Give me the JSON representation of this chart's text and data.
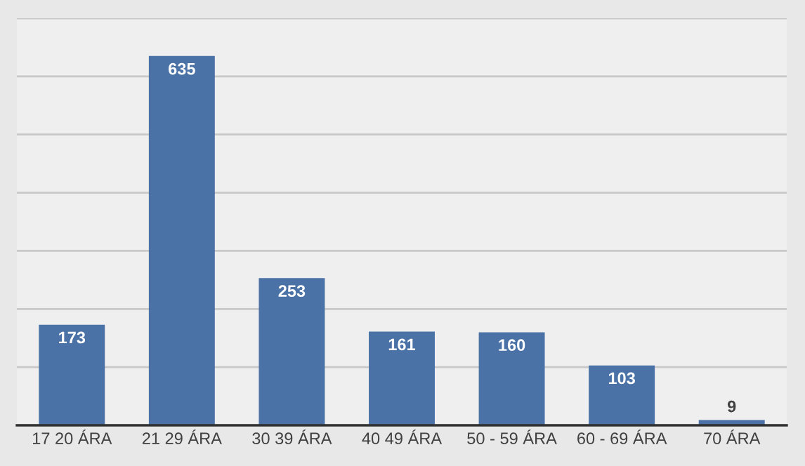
{
  "chart_data": {
    "type": "bar",
    "categories": [
      "17 20 ÁRA",
      "21 29 ÁRA",
      "30 39 ÁRA",
      "40 49 ÁRA",
      "50 - 59 ÁRA",
      "60 - 69 ÁRA",
      "70 ÁRA"
    ],
    "values": [
      173,
      635,
      253,
      161,
      160,
      103,
      9
    ],
    "color": "#4a72a6",
    "data_labels": true,
    "grid": "y",
    "tick_labels": "x",
    "legend": false,
    "ylim": [
      0,
      700
    ],
    "yticks": [
      {
        "value": 0,
        "label": null
      },
      {
        "value": 100,
        "label": null
      },
      {
        "value": 200,
        "label": null
      },
      {
        "value": 300,
        "label": null
      },
      {
        "value": 400,
        "label": null
      },
      {
        "value": 500,
        "label": null
      },
      {
        "value": 600,
        "label": null
      },
      {
        "value": 700,
        "label": null
      }
    ]
  }
}
